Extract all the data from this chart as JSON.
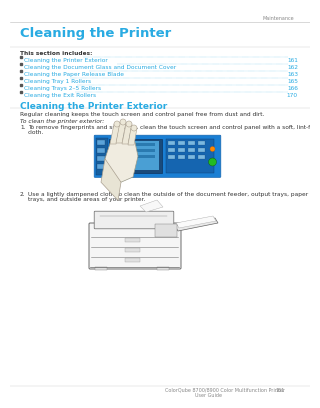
{
  "background_color": "#ffffff",
  "header_text": "Maintenance",
  "title": "Cleaning the Printer",
  "title_color": "#29abe2",
  "section_includes_label": "This section includes:",
  "toc_items": [
    [
      "Cleaning the Printer Exterior",
      "161"
    ],
    [
      "Cleaning the Document Glass and Document Cover",
      "162"
    ],
    [
      "Cleaning the Paper Release Blade",
      "163"
    ],
    [
      "Cleaning Tray 1 Rollers",
      "165"
    ],
    [
      "Cleaning Trays 2–5 Rollers",
      "166"
    ],
    [
      "Cleaning the Exit Rollers",
      "170"
    ]
  ],
  "toc_color": "#29abe2",
  "section2_title": "Cleaning the Printer Exterior",
  "section2_color": "#29abe2",
  "body_text1": "Regular cleaning keeps the touch screen and control panel free from dust and dirt.",
  "body_text2": "To clean the printer exterior:",
  "step1_num": "1.",
  "step1_text": "To remove fingerprints and smudges, clean the touch screen and control panel with a soft, lint-free\ncloth.",
  "step2_num": "2.",
  "step2_text": "Use a lightly dampened cloth to clean the outside of the document feeder, output trays, paper\ntrays, and outside areas of your printer.",
  "footer_left": "ColorQube 8700/8900 Color Multifunction Printer",
  "footer_pagenum": "161",
  "footer_text2": "User Guide",
  "title_fontsize": 9.5,
  "section2_fontsize": 6.5,
  "body_fontsize": 4.2,
  "toc_fontsize": 4.2,
  "header_fontsize": 3.5,
  "footer_fontsize": 3.5,
  "label_fontsize": 4.0
}
